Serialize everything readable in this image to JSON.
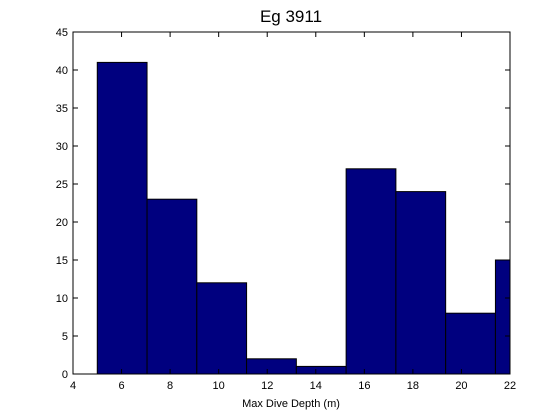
{
  "chart_data": {
    "type": "bar",
    "title": "Eg 3911",
    "xlabel": "Max Dive Depth (m)",
    "ylabel": "",
    "xlim": [
      4,
      22
    ],
    "ylim": [
      0,
      45
    ],
    "xticks": [
      4,
      6,
      8,
      10,
      12,
      14,
      16,
      18,
      20,
      22
    ],
    "yticks": [
      0,
      5,
      10,
      15,
      20,
      25,
      30,
      35,
      40,
      45
    ],
    "bins": [
      {
        "x0": 5.0,
        "x1": 7.05,
        "value": 41
      },
      {
        "x0": 7.05,
        "x1": 9.1,
        "value": 23
      },
      {
        "x0": 9.1,
        "x1": 11.15,
        "value": 12
      },
      {
        "x0": 11.15,
        "x1": 13.2,
        "value": 2
      },
      {
        "x0": 13.2,
        "x1": 15.25,
        "value": 1
      },
      {
        "x0": 15.25,
        "x1": 17.3,
        "value": 27
      },
      {
        "x0": 17.3,
        "x1": 19.35,
        "value": 24
      },
      {
        "x0": 19.35,
        "x1": 21.4,
        "value": 8
      },
      {
        "x0": 21.4,
        "x1": 23.45,
        "value": 15
      }
    ],
    "bar_color": "#00007f",
    "grid": false
  }
}
